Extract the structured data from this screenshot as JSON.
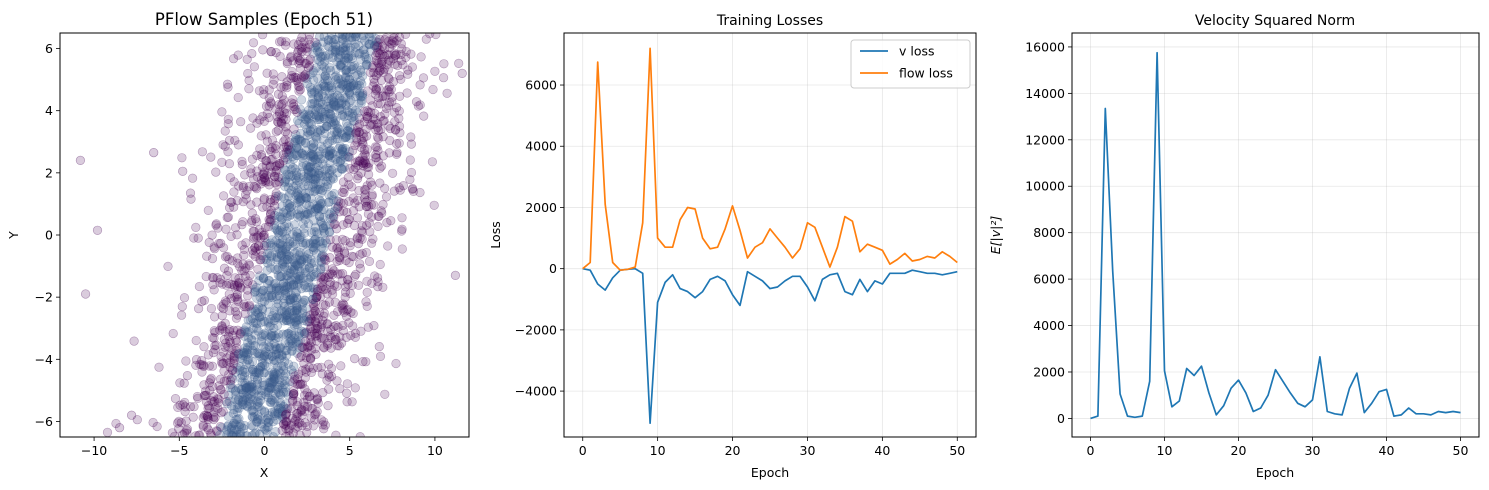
{
  "chart_data": [
    {
      "type": "scatter",
      "title": "PFlow Samples (Epoch 51)",
      "xlabel": "X",
      "ylabel": "Y",
      "xlim": [
        -12,
        12
      ],
      "ylim": [
        -6.5,
        6.5
      ],
      "xticks": [
        -10,
        -5,
        0,
        5,
        10
      ],
      "yticks": [
        -6,
        -4,
        -2,
        0,
        2,
        4,
        6
      ],
      "grid": false,
      "colormap": "viridis (density)",
      "point_color": "#440154",
      "dense_color": "#3b5b8c",
      "point_alpha": 0.2,
      "distribution": {
        "description_values": "elongated Gaussian cloud along line x = 2 + 0.45*y",
        "center_x": 2.0,
        "center_y": 0.0,
        "slope_x_per_y": 0.45,
        "spread_x": 2.4,
        "y_range": [
          -6.5,
          6.5
        ]
      },
      "outliers": [
        {
          "x": -10.8,
          "y": 2.4
        },
        {
          "x": -10.5,
          "y": -1.9
        },
        {
          "x": -9.8,
          "y": 0.15
        },
        {
          "x": -6.5,
          "y": 2.65
        },
        {
          "x": -4.8,
          "y": 2.05
        },
        {
          "x": 11.2,
          "y": -1.3
        },
        {
          "x": 11.6,
          "y": 5.2
        },
        {
          "x": -8.5,
          "y": -6.2
        },
        {
          "x": -7.8,
          "y": -5.8
        }
      ]
    },
    {
      "type": "line",
      "title": "Training Losses",
      "xlabel": "Epoch",
      "ylabel": "Loss",
      "xlim": [
        -2.5,
        52.5
      ],
      "ylim": [
        -5500,
        7700
      ],
      "xticks": [
        0,
        10,
        20,
        30,
        40,
        50
      ],
      "yticks": [
        -4000,
        -2000,
        0,
        2000,
        4000,
        6000
      ],
      "grid": true,
      "legend": "top-right",
      "x": [
        0,
        1,
        2,
        3,
        4,
        5,
        6,
        7,
        8,
        9,
        10,
        11,
        12,
        13,
        14,
        15,
        16,
        17,
        18,
        19,
        20,
        21,
        22,
        23,
        24,
        25,
        26,
        27,
        28,
        29,
        30,
        31,
        32,
        33,
        34,
        35,
        36,
        37,
        38,
        39,
        40,
        41,
        42,
        43,
        44,
        45,
        46,
        47,
        48,
        49,
        50
      ],
      "series": [
        {
          "name": "v loss",
          "color": "#1f77b4",
          "values": [
            0,
            -50,
            -500,
            -700,
            -300,
            -50,
            -20,
            0,
            -150,
            -5050,
            -1100,
            -450,
            -200,
            -650,
            -750,
            -950,
            -750,
            -350,
            -250,
            -400,
            -850,
            -1200,
            -100,
            -250,
            -400,
            -650,
            -600,
            -400,
            -250,
            -250,
            -600,
            -1050,
            -350,
            -200,
            -150,
            -750,
            -850,
            -350,
            -750,
            -400,
            -500,
            -150,
            -150,
            -150,
            -50,
            -100,
            -150,
            -150,
            -200,
            -150,
            -100
          ]
        },
        {
          "name": "flow loss",
          "color": "#ff7f0e",
          "values": [
            0,
            200,
            6750,
            2100,
            200,
            -50,
            -20,
            50,
            1500,
            7200,
            1000,
            700,
            700,
            1600,
            2000,
            1950,
            1000,
            650,
            700,
            1300,
            2050,
            1250,
            350,
            700,
            850,
            1300,
            1000,
            700,
            350,
            650,
            1500,
            1350,
            700,
            50,
            700,
            1700,
            1550,
            550,
            800,
            700,
            600,
            150,
            300,
            500,
            250,
            300,
            400,
            350,
            550,
            400,
            200
          ]
        }
      ]
    },
    {
      "type": "line",
      "title": "Velocity Squared Norm",
      "xlabel": "Epoch",
      "ylabel": "E[|v|²]",
      "xlim": [
        -2.5,
        52.5
      ],
      "ylim": [
        -800,
        16600
      ],
      "xticks": [
        0,
        10,
        20,
        30,
        40,
        50
      ],
      "yticks": [
        0,
        2000,
        4000,
        6000,
        8000,
        10000,
        12000,
        14000,
        16000
      ],
      "grid": true,
      "x": [
        0,
        1,
        2,
        3,
        4,
        5,
        6,
        7,
        8,
        9,
        10,
        11,
        12,
        13,
        14,
        15,
        16,
        17,
        18,
        19,
        20,
        21,
        22,
        23,
        24,
        25,
        26,
        27,
        28,
        29,
        30,
        31,
        32,
        33,
        34,
        35,
        36,
        37,
        38,
        39,
        40,
        41,
        42,
        43,
        44,
        45,
        46,
        47,
        48,
        49,
        50
      ],
      "series": [
        {
          "color": "#1f77b4",
          "values": [
            0,
            100,
            13350,
            6350,
            1050,
            100,
            50,
            100,
            1600,
            15750,
            2050,
            500,
            750,
            2150,
            1850,
            2250,
            1100,
            150,
            550,
            1300,
            1650,
            1100,
            300,
            450,
            1000,
            2100,
            1600,
            1100,
            650,
            500,
            800,
            2650,
            300,
            200,
            150,
            1300,
            1950,
            250,
            650,
            1150,
            1250,
            100,
            150,
            450,
            200,
            200,
            150,
            300,
            250,
            300,
            250
          ]
        }
      ]
    }
  ]
}
